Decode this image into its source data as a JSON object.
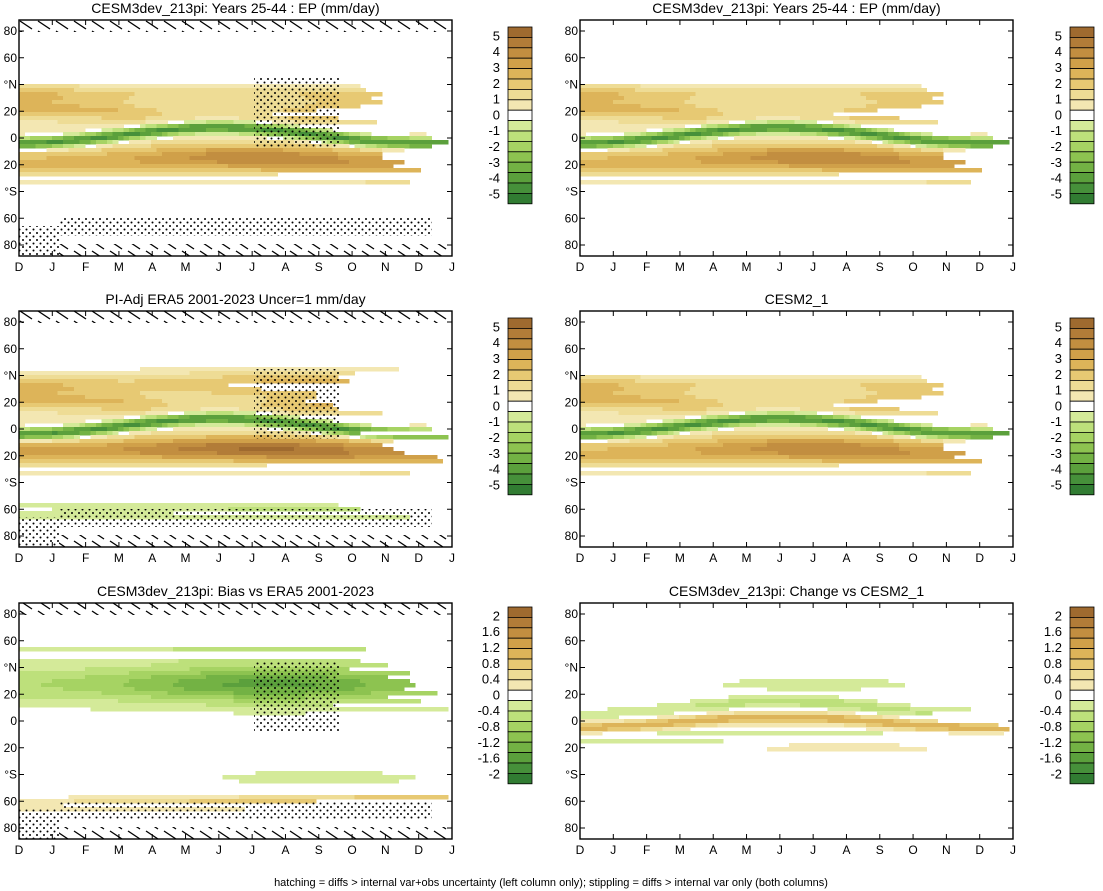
{
  "colors": {
    "brown": [
      "#f3e7b2",
      "#eedc95",
      "#e7c973",
      "#ddb459",
      "#d0a049",
      "#c28e40",
      "#b27c38",
      "#9f6a2f"
    ],
    "green": [
      "#d4ea99",
      "#bde07b",
      "#a6d363",
      "#8dc350",
      "#73b244",
      "#5ba03c",
      "#46903a",
      "#317c32"
    ],
    "neutral": "#ffffff"
  },
  "footer": "hatching = diffs > internal var+obs uncertainty (left column only); stippling = diffs > internal var only (both columns)",
  "chart_data": [
    {
      "type": "heatmap",
      "title": "CESM3dev_213pi: Years 25-44 : EP (mm/day)",
      "x_ticks": [
        "D",
        "J",
        "F",
        "M",
        "A",
        "M",
        "J",
        "J",
        "A",
        "S",
        "O",
        "N",
        "D",
        "J"
      ],
      "y_ticks": [
        "80",
        "60",
        "°N",
        "20",
        "0",
        "20",
        "°S",
        "60",
        "80"
      ],
      "colorbar": [
        "5",
        "4",
        "3",
        "2",
        "1",
        "0",
        "-1",
        "-2",
        "-3",
        "-4",
        "-5"
      ],
      "style": "mean",
      "hatching": true
    },
    {
      "type": "heatmap",
      "title": "CESM3dev_213pi: Years 25-44 : EP (mm/day)",
      "x_ticks": [
        "D",
        "J",
        "F",
        "M",
        "A",
        "M",
        "J",
        "J",
        "A",
        "S",
        "O",
        "N",
        "D",
        "J"
      ],
      "y_ticks": [
        "80",
        "60",
        "°N",
        "20",
        "0",
        "20",
        "°S",
        "60",
        "80"
      ],
      "colorbar": [
        "5",
        "4",
        "3",
        "2",
        "1",
        "0",
        "-1",
        "-2",
        "-3",
        "-4",
        "-5"
      ],
      "style": "mean",
      "hatching": false
    },
    {
      "type": "heatmap",
      "title": "PI-Adj ERA5 2001-2023 Uncer=1 mm/day",
      "x_ticks": [
        "D",
        "J",
        "F",
        "M",
        "A",
        "M",
        "J",
        "J",
        "A",
        "S",
        "O",
        "N",
        "D",
        "J"
      ],
      "y_ticks": [
        "80",
        "60",
        "°N",
        "20",
        "0",
        "20",
        "°S",
        "60",
        "80"
      ],
      "colorbar": [
        "5",
        "4",
        "3",
        "2",
        "1",
        "0",
        "-1",
        "-2",
        "-3",
        "-4",
        "-5"
      ],
      "style": "obs",
      "hatching": true
    },
    {
      "type": "heatmap",
      "title": "CESM2_1",
      "x_ticks": [
        "D",
        "J",
        "F",
        "M",
        "A",
        "M",
        "J",
        "J",
        "A",
        "S",
        "O",
        "N",
        "D",
        "J"
      ],
      "y_ticks": [
        "80",
        "60",
        "°N",
        "20",
        "0",
        "20",
        "°S",
        "60",
        "80"
      ],
      "colorbar": [
        "5",
        "4",
        "3",
        "2",
        "1",
        "0",
        "-1",
        "-2",
        "-3",
        "-4",
        "-5"
      ],
      "style": "mean",
      "hatching": false
    },
    {
      "type": "heatmap",
      "title": "CESM3dev_213pi: Bias vs ERA5 2001-2023",
      "x_ticks": [
        "D",
        "J",
        "F",
        "M",
        "A",
        "M",
        "J",
        "J",
        "A",
        "S",
        "O",
        "N",
        "D",
        "J"
      ],
      "y_ticks": [
        "80",
        "60",
        "°N",
        "20",
        "0",
        "20",
        "°S",
        "60",
        "80"
      ],
      "colorbar": [
        "2",
        "1.6",
        "1.2",
        "0.8",
        "0.4",
        "0",
        "-0.4",
        "-0.8",
        "-1.2",
        "-1.6",
        "-2"
      ],
      "style": "bias",
      "hatching": true
    },
    {
      "type": "heatmap",
      "title": "CESM3dev_213pi: Change vs CESM2_1",
      "x_ticks": [
        "D",
        "J",
        "F",
        "M",
        "A",
        "M",
        "J",
        "J",
        "A",
        "S",
        "O",
        "N",
        "D",
        "J"
      ],
      "y_ticks": [
        "80",
        "60",
        "°N",
        "20",
        "0",
        "20",
        "°S",
        "60",
        "80"
      ],
      "colorbar": [
        "2",
        "1.6",
        "1.2",
        "0.8",
        "0.4",
        "0",
        "-0.4",
        "-0.8",
        "-1.2",
        "-1.6",
        "-2"
      ],
      "style": "change",
      "hatching": false
    }
  ]
}
